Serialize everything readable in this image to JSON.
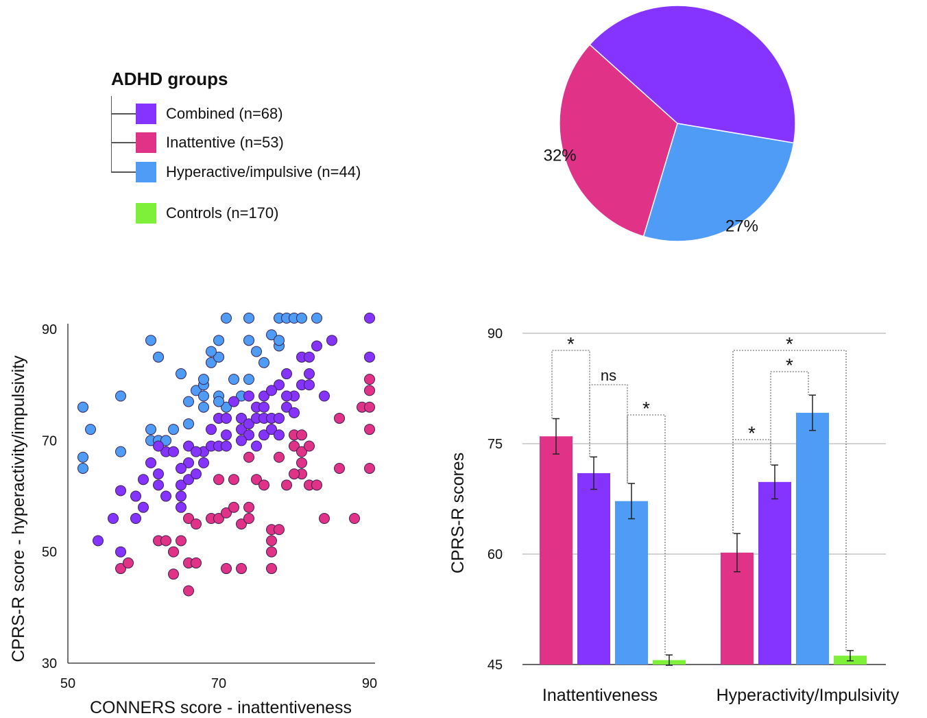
{
  "legend": {
    "title": "ADHD groups",
    "items": [
      {
        "label": "Combined (n=68)",
        "color": "#8533ff"
      },
      {
        "label": "Inattentive (n=53)",
        "color": "#e03287"
      },
      {
        "label": "Hyperactive/impulsive (n=44)",
        "color": "#4f9cf7"
      },
      {
        "label": "Controls (n=170)",
        "color": "#7ef03a"
      }
    ]
  },
  "chart_data": [
    {
      "type": "pie",
      "slices": [
        {
          "group": "Combined (n=68)",
          "value": 41,
          "label": "",
          "color": "#8533ff"
        },
        {
          "group": "Hyperactive/impulsive (n=44)",
          "value": 27,
          "label": "27%",
          "color": "#4f9cf7"
        },
        {
          "group": "Inattentive (n=53)",
          "value": 32,
          "label": "32%",
          "color": "#e03287"
        }
      ]
    },
    {
      "type": "scatter",
      "xlabel": "CONNERS score - inattentiveness",
      "ylabel": "CPRS-R score - hyperactivity/impulsivity",
      "xlim": [
        50,
        90
      ],
      "ylim": [
        30,
        91
      ],
      "xticks": [
        "50",
        "70",
        "90"
      ],
      "yticks": [
        "30",
        "50",
        "70",
        "90"
      ],
      "series": [
        {
          "group": "Hyperactive/impulsive",
          "color": "#4f9cf7",
          "points": [
            [
              52,
              76
            ],
            [
              53,
              72
            ],
            [
              52,
              67
            ],
            [
              52,
              65
            ],
            [
              57,
              78
            ],
            [
              57,
              68
            ],
            [
              61,
              88
            ],
            [
              62,
              85
            ],
            [
              65,
              82
            ],
            [
              61,
              72
            ],
            [
              61,
              70
            ],
            [
              62,
              70
            ],
            [
              63,
              70
            ],
            [
              64,
              72
            ],
            [
              66,
              73
            ],
            [
              66,
              77
            ],
            [
              67,
              79
            ],
            [
              68,
              78
            ],
            [
              68,
              80
            ],
            [
              68,
              76
            ],
            [
              69,
              84
            ],
            [
              70,
              85
            ],
            [
              70,
              88
            ],
            [
              71,
              92
            ],
            [
              70,
              78
            ],
            [
              71,
              76
            ],
            [
              72,
              81
            ],
            [
              74,
              92
            ],
            [
              74,
              88
            ],
            [
              74,
              81
            ],
            [
              75,
              86
            ],
            [
              76,
              84
            ],
            [
              77,
              89
            ],
            [
              78,
              87
            ],
            [
              78,
              88
            ],
            [
              78,
              92
            ],
            [
              79,
              92
            ],
            [
              80,
              92
            ],
            [
              81,
              92
            ],
            [
              83,
              92
            ],
            [
              68,
              81
            ],
            [
              69,
              86
            ],
            [
              70,
              77
            ],
            [
              73,
              78
            ]
          ]
        },
        {
          "group": "Combined",
          "color": "#8533ff",
          "points": [
            [
              54,
              52
            ],
            [
              56,
              56
            ],
            [
              57,
              61
            ],
            [
              57,
              50
            ],
            [
              59,
              60
            ],
            [
              59,
              56
            ],
            [
              60,
              58
            ],
            [
              61,
              66
            ],
            [
              62,
              64
            ],
            [
              62,
              62
            ],
            [
              63,
              60
            ],
            [
              63,
              68
            ],
            [
              64,
              68
            ],
            [
              65,
              62
            ],
            [
              65,
              60
            ],
            [
              65,
              58
            ],
            [
              66,
              66
            ],
            [
              66,
              63
            ],
            [
              66,
              69
            ],
            [
              67,
              64
            ],
            [
              68,
              66
            ],
            [
              68,
              68
            ],
            [
              69,
              72
            ],
            [
              69,
              69
            ],
            [
              70,
              69
            ],
            [
              70,
              74
            ],
            [
              71,
              71
            ],
            [
              71,
              69
            ],
            [
              72,
              77
            ],
            [
              73,
              74
            ],
            [
              73,
              72
            ],
            [
              74,
              71
            ],
            [
              74,
              73
            ],
            [
              75,
              76
            ],
            [
              75,
              74
            ],
            [
              75,
              69
            ],
            [
              76,
              71
            ],
            [
              76,
              74
            ],
            [
              77,
              74
            ],
            [
              77,
              72
            ],
            [
              78,
              71
            ],
            [
              78,
              74
            ],
            [
              78,
              80
            ],
            [
              79,
              76
            ],
            [
              79,
              82
            ],
            [
              80,
              78
            ],
            [
              81,
              80
            ],
            [
              81,
              85
            ],
            [
              82,
              82
            ],
            [
              82,
              80
            ],
            [
              82,
              85
            ],
            [
              83,
              87
            ],
            [
              84,
              78
            ],
            [
              85,
              88
            ],
            [
              90,
              92
            ],
            [
              90,
              85
            ],
            [
              74,
              78
            ],
            [
              76,
              78
            ],
            [
              77,
              79
            ],
            [
              79,
              78
            ],
            [
              67,
              68
            ],
            [
              65,
              65
            ],
            [
              60,
              63
            ],
            [
              62,
              69
            ],
            [
              71,
              74
            ],
            [
              73,
              70
            ],
            [
              76,
              76
            ],
            [
              80,
              75
            ]
          ]
        },
        {
          "group": "Inattentive",
          "color": "#e03287",
          "points": [
            [
              57,
              47
            ],
            [
              58,
              48
            ],
            [
              62,
              52
            ],
            [
              63,
              52
            ],
            [
              64,
              46
            ],
            [
              64,
              50
            ],
            [
              65,
              52
            ],
            [
              66,
              48
            ],
            [
              66,
              56
            ],
            [
              66,
              43
            ],
            [
              67,
              55
            ],
            [
              67,
              48
            ],
            [
              69,
              56
            ],
            [
              70,
              56
            ],
            [
              71,
              57
            ],
            [
              71,
              47
            ],
            [
              72,
              58
            ],
            [
              72,
              63
            ],
            [
              73,
              55
            ],
            [
              73,
              47
            ],
            [
              74,
              58
            ],
            [
              74,
              56
            ],
            [
              75,
              63
            ],
            [
              76,
              62
            ],
            [
              77,
              54
            ],
            [
              77,
              52
            ],
            [
              77,
              50
            ],
            [
              77,
              47
            ],
            [
              78,
              54
            ],
            [
              78,
              67
            ],
            [
              79,
              62
            ],
            [
              80,
              71
            ],
            [
              80,
              69
            ],
            [
              81,
              68
            ],
            [
              81,
              66
            ],
            [
              81,
              64
            ],
            [
              81,
              71
            ],
            [
              82,
              69
            ],
            [
              82,
              62
            ],
            [
              83,
              62
            ],
            [
              84,
              56
            ],
            [
              86,
              65
            ],
            [
              86,
              74
            ],
            [
              88,
              56
            ],
            [
              89,
              76
            ],
            [
              90,
              79
            ],
            [
              90,
              76
            ],
            [
              90,
              81
            ],
            [
              90,
              72
            ],
            [
              90,
              65
            ],
            [
              80,
              64
            ],
            [
              74,
              67
            ],
            [
              70,
              63
            ]
          ]
        }
      ]
    },
    {
      "type": "bar",
      "ylabel": "CPRS-R scores",
      "ylim": [
        45,
        90
      ],
      "yticks": [
        "45",
        "60",
        "75",
        "90"
      ],
      "categories": [
        "Inattentiveness",
        "Hyperactivity/Impulsivity"
      ],
      "series": [
        {
          "name": "Inattentive",
          "color": "#e03287",
          "values": [
            76.0,
            60.2
          ],
          "errors": [
            2.4,
            2.6
          ]
        },
        {
          "name": "Combined",
          "color": "#8533ff",
          "values": [
            71.0,
            69.8
          ],
          "errors": [
            2.2,
            2.3
          ]
        },
        {
          "name": "Hyperactive/impulsive",
          "color": "#4f9cf7",
          "values": [
            67.2,
            79.2
          ],
          "errors": [
            2.4,
            2.4
          ]
        },
        {
          "name": "Controls",
          "color": "#7ef03a",
          "values": [
            45.6,
            46.2
          ],
          "errors": [
            0.7,
            0.7
          ]
        }
      ],
      "annotations": [
        {
          "category": 0,
          "from": 0,
          "to": 1,
          "text": "*"
        },
        {
          "category": 0,
          "from": 1,
          "to": 2,
          "text": "ns"
        },
        {
          "category": 0,
          "from": 2,
          "to": 3,
          "text": "*"
        },
        {
          "category": 1,
          "from": 0,
          "to": 1,
          "text": "*"
        },
        {
          "category": 1,
          "from": 1,
          "to": 2,
          "text": "*"
        },
        {
          "category": 1,
          "from": 0,
          "to": 3,
          "text": "*"
        }
      ]
    }
  ]
}
